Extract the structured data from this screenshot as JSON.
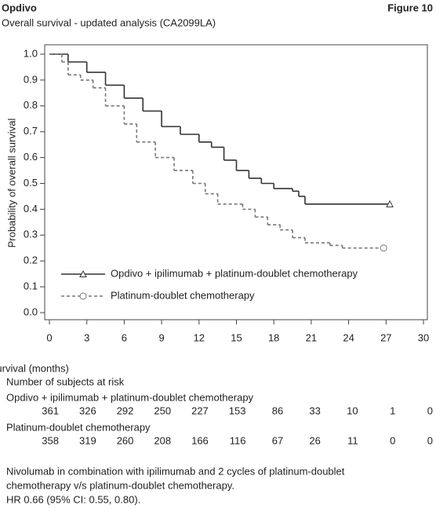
{
  "header": {
    "title": "Opdivo",
    "figure": "Figure 10",
    "subtitle": "Overall survival - updated analysis (CA2099LA)"
  },
  "chart_data": {
    "type": "step",
    "xlabel": "Overall survival (months)",
    "ylabel": "Probability of overall survival",
    "xlim": [
      0,
      30
    ],
    "xticks": [
      0,
      3,
      6,
      9,
      12,
      15,
      18,
      21,
      24,
      27,
      30
    ],
    "ylim": [
      0,
      1
    ],
    "yticks": [
      {
        "value": 0,
        "label": "0.0"
      },
      0.1,
      0.2,
      0.3,
      0.4,
      0.5,
      0.6,
      0.7,
      0.8,
      0.9,
      {
        "value": 1,
        "label": "1.0"
      }
    ],
    "series": [
      {
        "name": "Opdivo + ipilimumab + platinum-doublet chemotherapy",
        "color": "#333333",
        "marker": "triangle",
        "dashed": false,
        "x": [
          0,
          1.5,
          3,
          4.5,
          6,
          7.5,
          9,
          10.5,
          12,
          13,
          14,
          15,
          16,
          17,
          18,
          19.5,
          20,
          20.5,
          27.3
        ],
        "values": [
          1.0,
          0.97,
          0.93,
          0.88,
          0.83,
          0.78,
          0.72,
          0.69,
          0.66,
          0.64,
          0.59,
          0.55,
          0.52,
          0.5,
          0.48,
          0.47,
          0.45,
          0.42,
          0.42
        ]
      },
      {
        "name": "Platinum-doublet chemotherapy",
        "color": "#777777",
        "marker": "circle",
        "dashed": true,
        "x": [
          0,
          1,
          1.5,
          2.5,
          3.5,
          4.5,
          6,
          7,
          8.5,
          10,
          11.5,
          12.5,
          13.5,
          15.5,
          16.5,
          17.5,
          18.5,
          19.5,
          20.5,
          22.5,
          23.5,
          26.8
        ],
        "values": [
          1.0,
          0.97,
          0.92,
          0.9,
          0.87,
          0.8,
          0.73,
          0.66,
          0.6,
          0.55,
          0.5,
          0.46,
          0.42,
          0.4,
          0.37,
          0.34,
          0.32,
          0.29,
          0.27,
          0.26,
          0.25,
          0.25
        ]
      }
    ]
  },
  "risk_table": {
    "title": "Number of subjects at risk",
    "rows": [
      {
        "name": "Opdivo + ipilimumab + platinum-doublet chemotherapy",
        "values": [
          361,
          326,
          292,
          250,
          227,
          153,
          86,
          33,
          10,
          1,
          0
        ]
      },
      {
        "name": "Platinum-doublet chemotherapy",
        "values": [
          358,
          319,
          260,
          208,
          166,
          116,
          67,
          26,
          11,
          0,
          0
        ]
      }
    ]
  },
  "footnote": [
    "Nivolumab in combination with ipilimumab and 2 cycles of platinum-doublet",
    "chemotherapy v/s platinum-doublet chemotherapy.",
    "HR 0.66 (95% CI: 0.55, 0.80)."
  ]
}
